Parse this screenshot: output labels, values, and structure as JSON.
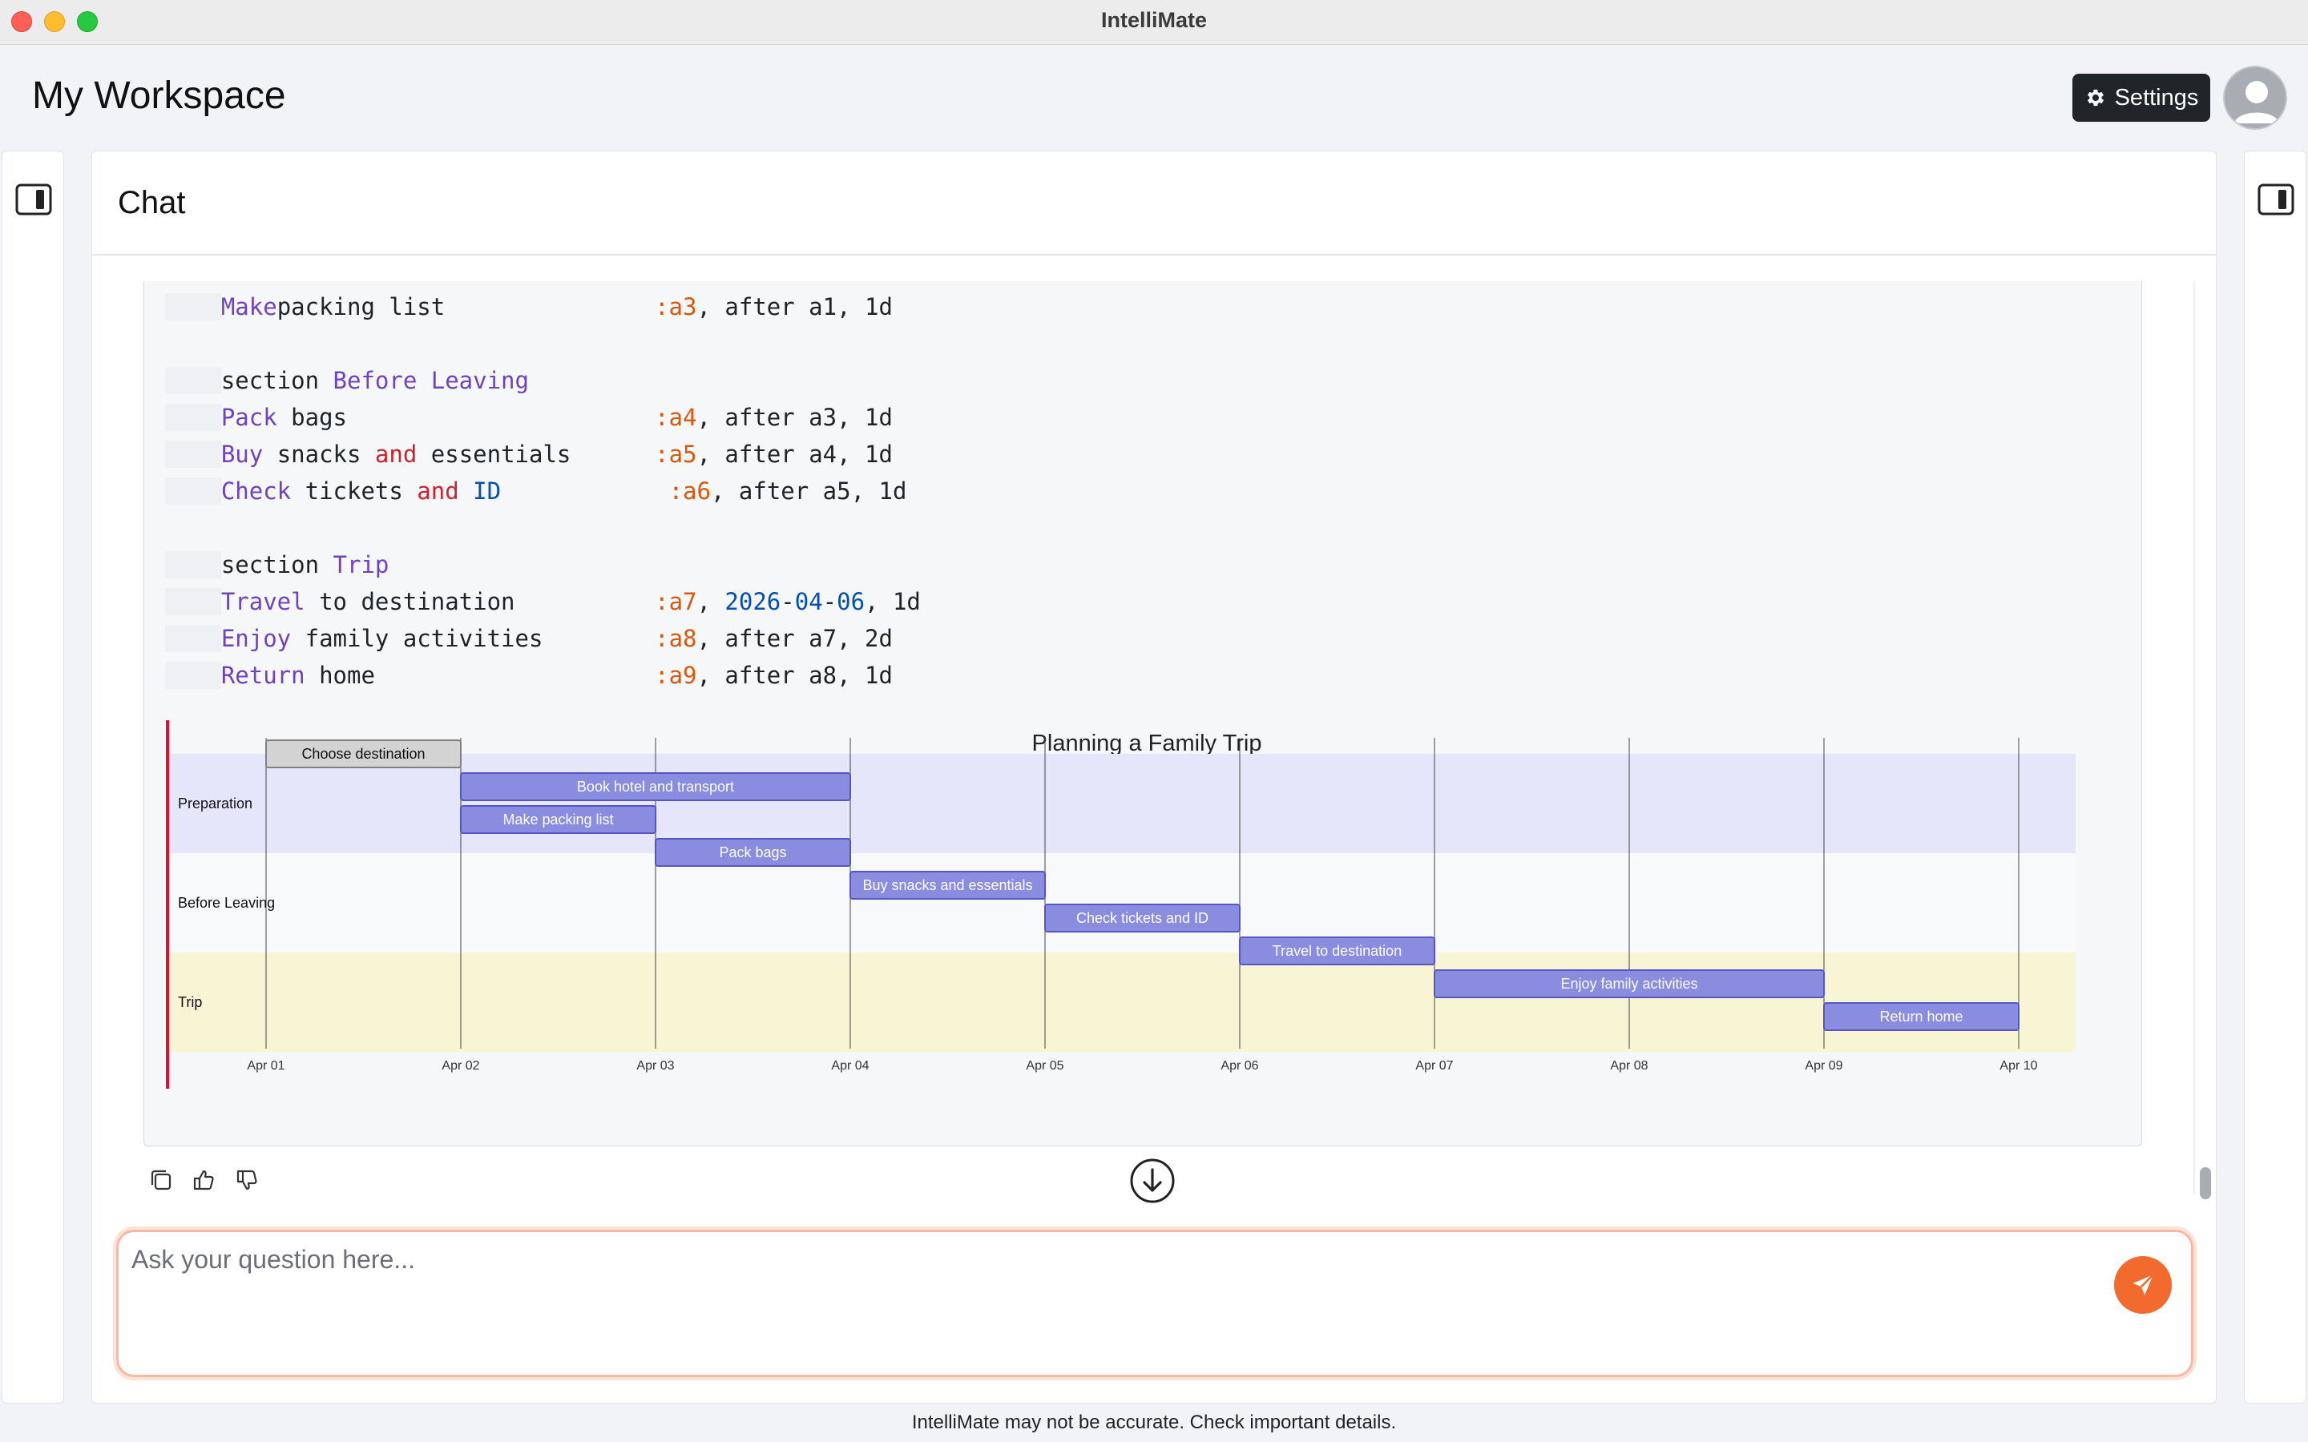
{
  "window": {
    "title": "IntelliMate"
  },
  "header": {
    "workspace_title": "My Workspace",
    "settings_label": "Settings"
  },
  "chat": {
    "title": "Chat",
    "code_lines": [
      {
        "indent": "    ",
        "tokens": [
          [
            "kw",
            "Make"
          ],
          [
            "",
            "packing list               "
          ],
          [
            "ref",
            ":a3"
          ],
          [
            "",
            ", after a1, 1d"
          ]
        ]
      },
      {
        "indent": "",
        "tokens": []
      },
      {
        "indent": "    ",
        "tokens": [
          [
            "",
            "section "
          ],
          [
            "kw",
            "Before Leaving"
          ]
        ]
      },
      {
        "indent": "    ",
        "tokens": [
          [
            "kw",
            "Pack"
          ],
          [
            "",
            " bags                      "
          ],
          [
            "ref",
            ":a4"
          ],
          [
            "",
            ", after a3, 1d"
          ]
        ]
      },
      {
        "indent": "    ",
        "tokens": [
          [
            "kw",
            "Buy"
          ],
          [
            "",
            " snacks "
          ],
          [
            "andk",
            "and"
          ],
          [
            "",
            " essentials      "
          ],
          [
            "ref",
            ":a5"
          ],
          [
            "",
            ", after a4, 1d"
          ]
        ]
      },
      {
        "indent": "    ",
        "tokens": [
          [
            "kw",
            "Check"
          ],
          [
            "",
            " tickets "
          ],
          [
            "andk",
            "and"
          ],
          [
            "",
            " "
          ],
          [
            "blue",
            "ID"
          ],
          [
            "",
            "            "
          ],
          [
            "ref",
            ":a6"
          ],
          [
            "",
            ", after a5, 1d"
          ]
        ]
      },
      {
        "indent": "",
        "tokens": []
      },
      {
        "indent": "    ",
        "tokens": [
          [
            "",
            "section "
          ],
          [
            "kw",
            "Trip"
          ]
        ]
      },
      {
        "indent": "    ",
        "tokens": [
          [
            "kw",
            "Travel"
          ],
          [
            "",
            " to destination          "
          ],
          [
            "ref",
            ":a7"
          ],
          [
            "",
            ", "
          ],
          [
            "blue",
            "2026"
          ],
          [
            "",
            "-"
          ],
          [
            "blue",
            "04"
          ],
          [
            "",
            "-"
          ],
          [
            "blue",
            "06"
          ],
          [
            "",
            ", 1d"
          ]
        ]
      },
      {
        "indent": "    ",
        "tokens": [
          [
            "kw",
            "Enjoy"
          ],
          [
            "",
            " family activities        "
          ],
          [
            "ref",
            ":a8"
          ],
          [
            "",
            ", after a7, 2d"
          ]
        ]
      },
      {
        "indent": "    ",
        "tokens": [
          [
            "kw",
            "Return"
          ],
          [
            "",
            " home                    "
          ],
          [
            "ref",
            ":a9"
          ],
          [
            "",
            ", after a8, 1d"
          ]
        ]
      }
    ],
    "input_placeholder": "Ask your question here...",
    "disclaimer": "IntelliMate may not be accurate. Check important details."
  },
  "chart_data": {
    "type": "gantt",
    "title": "Planning a Family Trip",
    "x_ticks": [
      "Apr 01",
      "Apr 02",
      "Apr 03",
      "Apr 04",
      "Apr 05",
      "Apr 06",
      "Apr 07",
      "Apr 08",
      "Apr 09",
      "Apr 10"
    ],
    "sections": [
      {
        "name": "Preparation",
        "color": "#e6e6fa"
      },
      {
        "name": "Before Leaving",
        "color": "#f8f9fb"
      },
      {
        "name": "Trip",
        "color": "#f7f5d3"
      }
    ],
    "tasks": [
      {
        "name": "Choose destination",
        "section": 0,
        "start": 0,
        "duration": 1,
        "done": true
      },
      {
        "name": "Book hotel and transport",
        "section": 0,
        "start": 1,
        "duration": 2,
        "done": false
      },
      {
        "name": "Make packing list",
        "section": 0,
        "start": 1,
        "duration": 1,
        "done": false
      },
      {
        "name": "Pack bags",
        "section": 1,
        "start": 2,
        "duration": 1,
        "done": false
      },
      {
        "name": "Buy snacks and essentials",
        "section": 1,
        "start": 3,
        "duration": 1,
        "done": false
      },
      {
        "name": "Check tickets and ID",
        "section": 1,
        "start": 4,
        "duration": 1,
        "done": false
      },
      {
        "name": "Travel to destination",
        "section": 2,
        "start": 5,
        "duration": 1,
        "done": false
      },
      {
        "name": "Enjoy family activities",
        "section": 2,
        "start": 6,
        "duration": 2,
        "done": false
      },
      {
        "name": "Return home",
        "section": 2,
        "start": 8,
        "duration": 1,
        "done": false
      }
    ],
    "colors": {
      "task_fill": "#8a8ce0",
      "task_stroke": "#5456c8",
      "done_fill": "#d3d3d3",
      "done_stroke": "#808080",
      "today_line": "#e0102a"
    }
  }
}
